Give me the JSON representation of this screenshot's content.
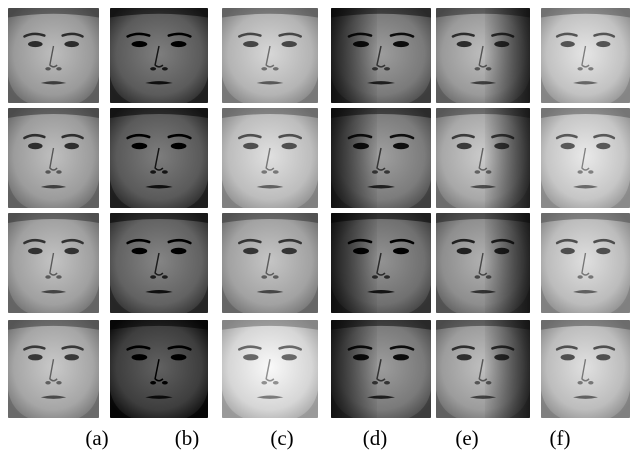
{
  "columns": [
    {
      "label": "(a)",
      "lighting": "uniform",
      "tones": [
        "#9a9a9a",
        "#9c9c9c",
        "#a0a0a0",
        "#a6a6a6"
      ]
    },
    {
      "label": "(b)",
      "lighting": "dim",
      "tones": [
        "#5b5b5b",
        "#5a5a5a",
        "#626262",
        "#3e3e3e"
      ]
    },
    {
      "label": "(c)",
      "lighting": "bright",
      "tones": [
        "#b4b4b4",
        "#bdbdbd",
        "#a2a2a2",
        "#d6d6d6"
      ]
    },
    {
      "label": "(d)",
      "lighting": "side-left-shadow",
      "tones": [
        "#7a7a7a",
        "#7c7c7c",
        "#707070",
        "#7a7a7a"
      ]
    },
    {
      "label": "(e)",
      "lighting": "side-right-shadow",
      "tones": [
        "#9a9a9a",
        "#a8a8a8",
        "#8e8e8e",
        "#9c9c9c"
      ]
    },
    {
      "label": "(f)",
      "lighting": "washed-out",
      "tones": [
        "#c2c2c2",
        "#c6c6c6",
        "#bcbcbc",
        "#bdbdbd"
      ]
    }
  ]
}
